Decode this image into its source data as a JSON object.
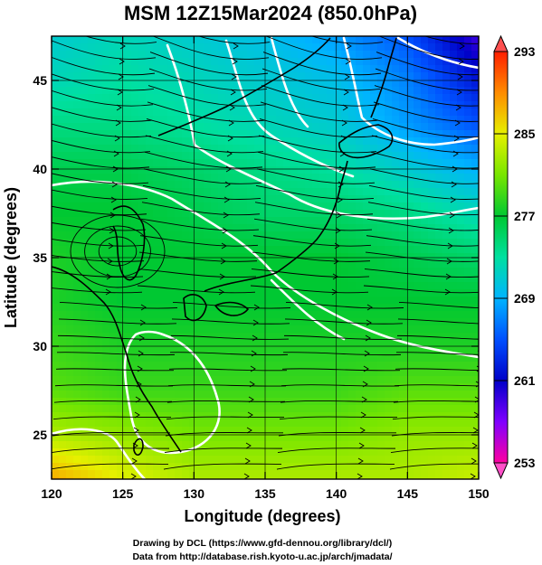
{
  "title": "MSM 12Z15Mar2024 (850.0hPa)",
  "xlabel": "Longitude (degrees)",
  "ylabel": "Latitude  (degrees)",
  "credit_line1": "Drawing by DCL (https://www.gfd-dennou.org/library/dcl/)",
  "credit_line2": "Data from http://database.rish.kyoto-u.ac.jp/arch/jmadata/",
  "chart_data": {
    "type": "heatmap",
    "variable": "temperature with wind streamlines",
    "level": "850.0hPa",
    "xlim": [
      120,
      150
    ],
    "ylim": [
      22.5,
      47.5
    ],
    "xticks": [
      120,
      125,
      130,
      135,
      140,
      145,
      150
    ],
    "yticks": [
      25,
      30,
      35,
      40,
      45
    ],
    "colorbar": {
      "min": 253,
      "max": 293,
      "tick_labels": [
        253,
        261,
        269,
        277,
        285,
        293
      ]
    },
    "temperature_grid": {
      "lons": [
        120,
        125,
        130,
        135,
        140,
        145,
        150
      ],
      "lats": [
        47.5,
        45,
        42.5,
        40,
        37.5,
        35,
        32.5,
        30,
        27.5,
        25,
        22.5
      ],
      "values": [
        [
          271,
          272,
          271,
          270,
          268,
          265,
          259
        ],
        [
          272,
          273,
          272,
          271,
          270,
          267,
          262
        ],
        [
          274,
          274,
          273,
          272,
          271,
          268,
          265
        ],
        [
          276,
          276,
          275,
          274,
          273,
          271,
          269
        ],
        [
          277,
          277,
          276,
          275,
          275,
          274,
          272
        ],
        [
          278,
          277,
          277,
          277,
          277,
          276,
          275
        ],
        [
          278,
          277,
          277,
          277,
          277,
          277,
          277
        ],
        [
          279,
          278,
          278,
          278,
          278,
          278,
          278
        ],
        [
          280,
          279,
          279,
          279,
          279,
          280,
          280
        ],
        [
          283,
          282,
          281,
          281,
          281,
          282,
          282
        ],
        [
          288,
          285,
          283,
          283,
          283,
          283,
          284
        ]
      ]
    }
  }
}
